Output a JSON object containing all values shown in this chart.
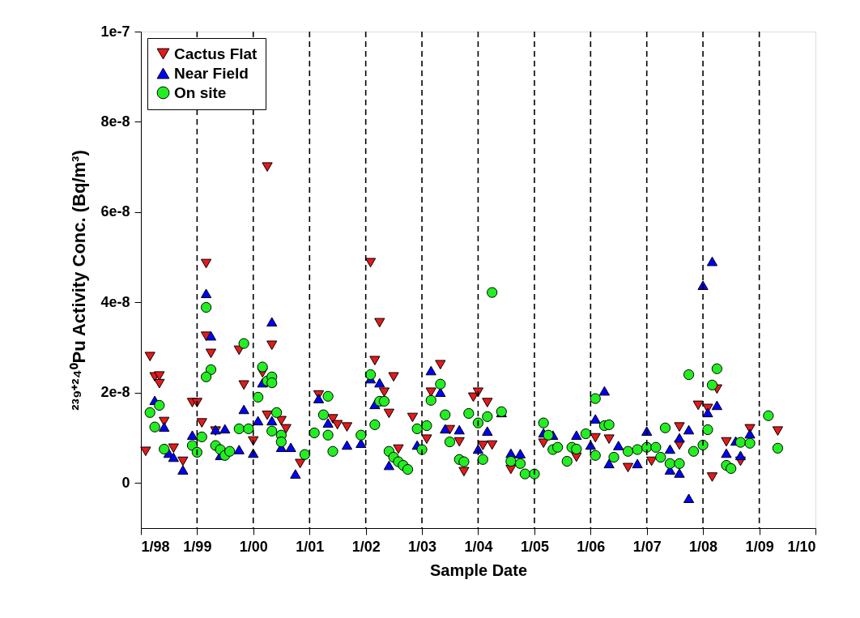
{
  "chart_data": {
    "type": "scatter",
    "xlabel": "Sample Date",
    "ylabel": "²³⁹⁺²⁴⁰Pu Activity Conc. (Bq/m³)",
    "xlim": [
      "1998-01-01",
      "2010-01-01"
    ],
    "xticks": [
      {
        "value": "1998-01-01",
        "label": "1/98"
      },
      {
        "value": "1999-01-01",
        "label": "1/99"
      },
      {
        "value": "2000-01-01",
        "label": "1/00"
      },
      {
        "value": "2001-01-01",
        "label": "1/01"
      },
      {
        "value": "2002-01-01",
        "label": "1/02"
      },
      {
        "value": "2003-01-01",
        "label": "1/03"
      },
      {
        "value": "2004-01-01",
        "label": "1/04"
      },
      {
        "value": "2005-01-01",
        "label": "1/05"
      },
      {
        "value": "2006-01-01",
        "label": "1/06"
      },
      {
        "value": "2007-01-01",
        "label": "1/07"
      },
      {
        "value": "2008-01-01",
        "label": "1/08"
      },
      {
        "value": "2009-01-01",
        "label": "1/09"
      },
      {
        "value": "2010-01-01",
        "label": "1/10"
      }
    ],
    "ylim": [
      -1e-08,
      1e-07
    ],
    "yticks": [
      {
        "value": 0,
        "label": "0"
      },
      {
        "value": 2e-08,
        "label": "2e-8"
      },
      {
        "value": 4e-08,
        "label": "4e-8"
      },
      {
        "value": 6e-08,
        "label": "6e-8"
      },
      {
        "value": 8e-08,
        "label": "8e-8"
      },
      {
        "value": 1e-07,
        "label": "1e-7"
      }
    ],
    "grid": false,
    "legend": "top left",
    "ref_lines": [
      {
        "axis": "x",
        "value": "1999-01-01",
        "line_style": "dashed",
        "color": "#000000"
      },
      {
        "axis": "x",
        "value": "2000-01-01",
        "line_style": "dashed",
        "color": "#000000"
      },
      {
        "axis": "x",
        "value": "2001-01-01",
        "line_style": "dashed",
        "color": "#000000"
      },
      {
        "axis": "x",
        "value": "2002-01-01",
        "line_style": "dashed",
        "color": "#000000"
      },
      {
        "axis": "x",
        "value": "2003-01-01",
        "line_style": "dashed",
        "color": "#000000"
      },
      {
        "axis": "x",
        "value": "2004-01-01",
        "line_style": "dashed",
        "color": "#000000"
      },
      {
        "axis": "x",
        "value": "2005-01-01",
        "line_style": "dashed",
        "color": "#000000"
      },
      {
        "axis": "x",
        "value": "2006-01-01",
        "line_style": "dashed",
        "color": "#000000"
      },
      {
        "axis": "x",
        "value": "2007-01-01",
        "line_style": "dashed",
        "color": "#000000"
      },
      {
        "axis": "x",
        "value": "2008-01-01",
        "line_style": "dashed",
        "color": "#000000"
      },
      {
        "axis": "x",
        "value": "2009-01-01",
        "line_style": "dashed",
        "color": "#000000"
      }
    ],
    "series": [
      {
        "name": "Cactus Flat",
        "color": "#e31a1c",
        "marker": "triangle-down",
        "x": [
          "1998-02",
          "1998-03",
          "1998-04",
          "1998-05",
          "1998-05",
          "1998-06",
          "1998-08",
          "1998-10",
          "1998-12",
          "1999-01",
          "1999-02",
          "1999-03",
          "1999-03",
          "1999-04",
          "1999-05",
          "1999-10",
          "1999-11",
          "2000-01",
          "2000-03",
          "2000-04",
          "2000-05",
          "2000-04",
          "2000-07",
          "2000-08",
          "2000-11",
          "2001-03",
          "2001-06",
          "2001-07",
          "2001-09",
          "2002-02",
          "2002-03",
          "2002-04",
          "2002-05",
          "2002-06",
          "2002-07",
          "2002-08",
          "2002-11",
          "2003-02",
          "2003-03",
          "2003-05",
          "2003-07",
          "2003-09",
          "2003-10",
          "2003-12",
          "2004-01",
          "2004-02",
          "2004-03",
          "2004-04",
          "2004-08",
          "2005-03",
          "2005-10",
          "2006-02",
          "2006-05",
          "2006-09",
          "2007-02",
          "2007-08",
          "2007-08",
          "2007-12",
          "2008-02",
          "2008-03",
          "2008-04",
          "2008-06",
          "2008-09",
          "2008-11",
          "2009-05"
        ],
        "values": [
          7e-09,
          2.8e-08,
          2.35e-08,
          2.37e-08,
          2.2e-08,
          1.36e-08,
          7.7e-09,
          4.8e-09,
          1.78e-08,
          1.78e-08,
          1.33e-08,
          4.86e-08,
          3.25e-08,
          2.87e-08,
          1.15e-08,
          2.94e-08,
          2.17e-08,
          9.3e-09,
          2.44e-08,
          7e-08,
          3.05e-08,
          1.5e-08,
          1.38e-08,
          1.2e-08,
          4.3e-09,
          1.95e-08,
          1.42e-08,
          1.29e-08,
          1.24e-08,
          4.88e-08,
          2.71e-08,
          3.55e-08,
          2.01e-08,
          1.54e-08,
          2.35e-08,
          7.5e-09,
          1.45e-08,
          9.7e-09,
          2.01e-08,
          2.62e-08,
          1.18e-08,
          9.1e-09,
          2.5e-09,
          1.9e-08,
          2.01e-08,
          8.3e-09,
          1.78e-08,
          8.4e-09,
          3e-09,
          8.8e-09,
          5.7e-09,
          1e-08,
          9.7e-09,
          3.4e-09,
          4.8e-09,
          1.24e-08,
          8.4e-09,
          1.72e-08,
          1.65e-08,
          1.3e-09,
          2.08e-08,
          9.1e-09,
          4.8e-09,
          1.2e-08,
          1.15e-08
        ]
      },
      {
        "name": "Near Field",
        "color": "#0000ff",
        "marker": "triangle-up",
        "x": [
          "1998-04",
          "1998-06",
          "1998-07",
          "1998-08",
          "1998-10",
          "1998-12",
          "1999-03",
          "1999-04",
          "1999-05",
          "1999-06",
          "1999-07",
          "1999-10",
          "1999-11",
          "2000-01",
          "2000-02",
          "2000-03",
          "2000-05",
          "2000-05",
          "2000-07",
          "2000-09",
          "2000-10",
          "2001-03",
          "2001-05",
          "2001-09",
          "2001-12",
          "2002-02",
          "2002-03",
          "2002-04",
          "2002-06",
          "2002-12",
          "2003-03",
          "2003-05",
          "2003-06",
          "2003-09",
          "2004-01",
          "2004-03",
          "2004-06",
          "2004-08",
          "2004-10",
          "2005-03",
          "2005-05",
          "2005-10",
          "2006-01",
          "2006-02",
          "2006-04",
          "2006-05",
          "2006-07",
          "2006-11",
          "2007-01",
          "2007-06",
          "2007-06",
          "2007-08",
          "2007-08",
          "2007-10",
          "2007-10",
          "2008-01",
          "2008-02",
          "2008-03",
          "2008-04",
          "2008-06",
          "2008-08",
          "2008-09",
          "2008-11"
        ],
        "values": [
          1.83e-08,
          1.24e-08,
          6.6e-09,
          5.7e-09,
          2.9e-09,
          1.06e-08,
          4.2e-08,
          3.26e-08,
          1.18e-08,
          6.1e-09,
          1.2e-08,
          7.4e-09,
          1.63e-08,
          6.6e-09,
          1.38e-08,
          2.22e-08,
          3.57e-08,
          1.38e-08,
          7.9e-09,
          7.9e-09,
          2e-09,
          1.87e-08,
          1.33e-08,
          8.4e-09,
          8.8e-09,
          2.31e-08,
          1.74e-08,
          2.22e-08,
          3.9e-09,
          8.4e-09,
          2.49e-08,
          2.01e-08,
          1.2e-08,
          1.18e-08,
          7.5e-09,
          1.15e-08,
          1.56e-08,
          6.6e-09,
          6.5e-09,
          1.11e-08,
          1.06e-08,
          1.06e-08,
          8.4e-09,
          1.42e-08,
          2.04e-08,
          4.3e-09,
          8.3e-09,
          4.3e-09,
          1.15e-08,
          7.5e-09,
          2.9e-09,
          2.2e-09,
          1e-08,
          1.18e-08,
          -3.4e-09,
          4.38e-08,
          1.56e-08,
          4.91e-08,
          1.72e-08,
          6.6e-09,
          9.3e-09,
          6.1e-09,
          1.09e-08
        ]
      },
      {
        "name": "On site",
        "color": "#22ee22",
        "marker": "circle",
        "x": [
          "1998-03",
          "1998-04",
          "1998-05",
          "1998-06",
          "1998-12",
          "1999-01",
          "1999-02",
          "1999-03",
          "1999-04",
          "1999-03",
          "1999-05",
          "1999-06",
          "1999-07",
          "1999-08",
          "1999-10",
          "1999-11",
          "1999-12",
          "2000-02",
          "2000-03",
          "2000-04",
          "2000-05",
          "2000-05",
          "2000-05",
          "2000-06",
          "2000-07",
          "2000-07",
          "2000-12",
          "2001-02",
          "2001-04",
          "2001-05",
          "2001-05",
          "2001-06",
          "2001-12",
          "2002-02",
          "2002-03",
          "2002-04",
          "2002-05",
          "2002-06",
          "2002-07",
          "2002-08",
          "2002-09",
          "2002-10",
          "2002-12",
          "2003-01",
          "2003-02",
          "2003-03",
          "2003-05",
          "2003-06",
          "2003-07",
          "2003-09",
          "2003-10",
          "2003-11",
          "2004-01",
          "2004-02",
          "2004-03",
          "2004-04",
          "2004-06",
          "2004-08",
          "2004-10",
          "2004-11",
          "2005-01",
          "2005-03",
          "2005-04",
          "2005-05",
          "2005-06",
          "2005-08",
          "2005-09",
          "2005-10",
          "2005-12",
          "2006-02",
          "2006-02",
          "2006-04",
          "2006-05",
          "2006-06",
          "2006-09",
          "2006-11",
          "2007-01",
          "2007-03",
          "2007-04",
          "2007-05",
          "2007-06",
          "2007-08",
          "2007-10",
          "2007-11",
          "2008-01",
          "2008-02",
          "2008-03",
          "2008-04",
          "2008-06",
          "2008-07",
          "2008-09",
          "2008-11",
          "2009-03",
          "2009-05"
        ],
        "values": [
          1.56e-08,
          1.24e-08,
          1.72e-08,
          7.5e-09,
          8.3e-09,
          6.8e-09,
          1.02e-08,
          3.89e-08,
          2.51e-08,
          2.35e-08,
          8.3e-09,
          7.4e-09,
          6.1e-09,
          7e-09,
          1.2e-08,
          3.09e-08,
          1.2e-08,
          1.9e-08,
          2.57e-08,
          2.26e-08,
          2.35e-08,
          2.22e-08,
          1.15e-08,
          1.56e-08,
          1.06e-08,
          9.1e-09,
          6.3e-09,
          1.11e-08,
          1.51e-08,
          1.92e-08,
          1.06e-08,
          7e-09,
          1.06e-08,
          2.4e-08,
          1.29e-08,
          1.81e-08,
          1.81e-08,
          7e-09,
          5.7e-09,
          4.7e-09,
          3.9e-09,
          3e-09,
          1.2e-08,
          7.4e-09,
          1.27e-08,
          1.83e-08,
          2.19e-08,
          1.51e-08,
          9.1e-09,
          5.2e-09,
          4.7e-09,
          1.54e-08,
          1.33e-08,
          5.2e-09,
          1.47e-08,
          4.22e-08,
          1.58e-08,
          4.8e-09,
          4.3e-09,
          2e-09,
          2e-09,
          1.33e-08,
          1.06e-08,
          7.4e-09,
          7.9e-09,
          4.8e-09,
          7.9e-09,
          7.5e-09,
          1.09e-08,
          1.87e-08,
          6.1e-09,
          1.27e-08,
          1.29e-08,
          5.7e-09,
          7e-09,
          7.4e-09,
          7.9e-09,
          7.9e-09,
          5.7e-09,
          1.22e-08,
          4.3e-09,
          4.3e-09,
          2.4e-08,
          7e-09,
          8.4e-09,
          1.18e-08,
          2.17e-08,
          2.53e-08,
          3.9e-09,
          3.2e-09,
          9e-09,
          8.8e-09,
          1.49e-08,
          7.7e-09
        ]
      }
    ]
  }
}
